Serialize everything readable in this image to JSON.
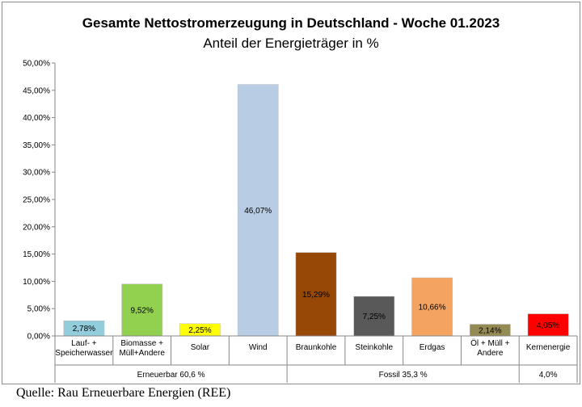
{
  "chart_data": {
    "type": "bar",
    "title": "Gesamte Nettostromerzeugung in Deutschland - Woche 01.2023",
    "subtitle": "Anteil der Energieträger in %",
    "categories": [
      [
        "Lauf- +",
        "Speicherwasser"
      ],
      [
        "Biomasse +",
        "Müll+Andere"
      ],
      [
        "Solar"
      ],
      [
        "Wind"
      ],
      [
        "Braunkohle"
      ],
      [
        "Steinkohle"
      ],
      [
        "Erdgas"
      ],
      [
        "Öl + Müll +",
        "Andere"
      ],
      [
        "Kernenergie"
      ]
    ],
    "values": [
      2.78,
      9.52,
      2.25,
      46.07,
      15.29,
      7.25,
      10.66,
      2.14,
      4.05
    ],
    "value_labels": [
      "2,78%",
      "9,52%",
      "2,25%",
      "46,07%",
      "15,29%",
      "7,25%",
      "10,66%",
      "2,14%",
      "4,05%"
    ],
    "colors": [
      "#92cddc",
      "#92d050",
      "#ffff00",
      "#b8cce4",
      "#974706",
      "#595959",
      "#f4a460",
      "#948a54",
      "#ff0000"
    ],
    "label_colors": [
      "#000000",
      "#000000",
      "#000000",
      "#000000",
      "#000000",
      "#000000",
      "#000000",
      "#000000",
      "#000000"
    ],
    "ylim": [
      0,
      50
    ],
    "yticks": [
      0,
      5,
      10,
      15,
      20,
      25,
      30,
      35,
      40,
      45,
      50
    ],
    "ytick_labels": [
      "0,00%",
      "5,00%",
      "10,00%",
      "15,00%",
      "20,00%",
      "25,00%",
      "30,00%",
      "35,00%",
      "40,00%",
      "45,00%",
      "50,00%"
    ],
    "groups": [
      {
        "label": "Erneuerbar 60,6 %",
        "start": 0,
        "end": 3
      },
      {
        "label": "Fossil 35,3 %",
        "start": 4,
        "end": 7
      },
      {
        "label": "4,0%",
        "start": 8,
        "end": 8
      }
    ],
    "grid": false,
    "legend": "none"
  },
  "source": "Quelle: Rau Erneuerbare Energien (REE)"
}
